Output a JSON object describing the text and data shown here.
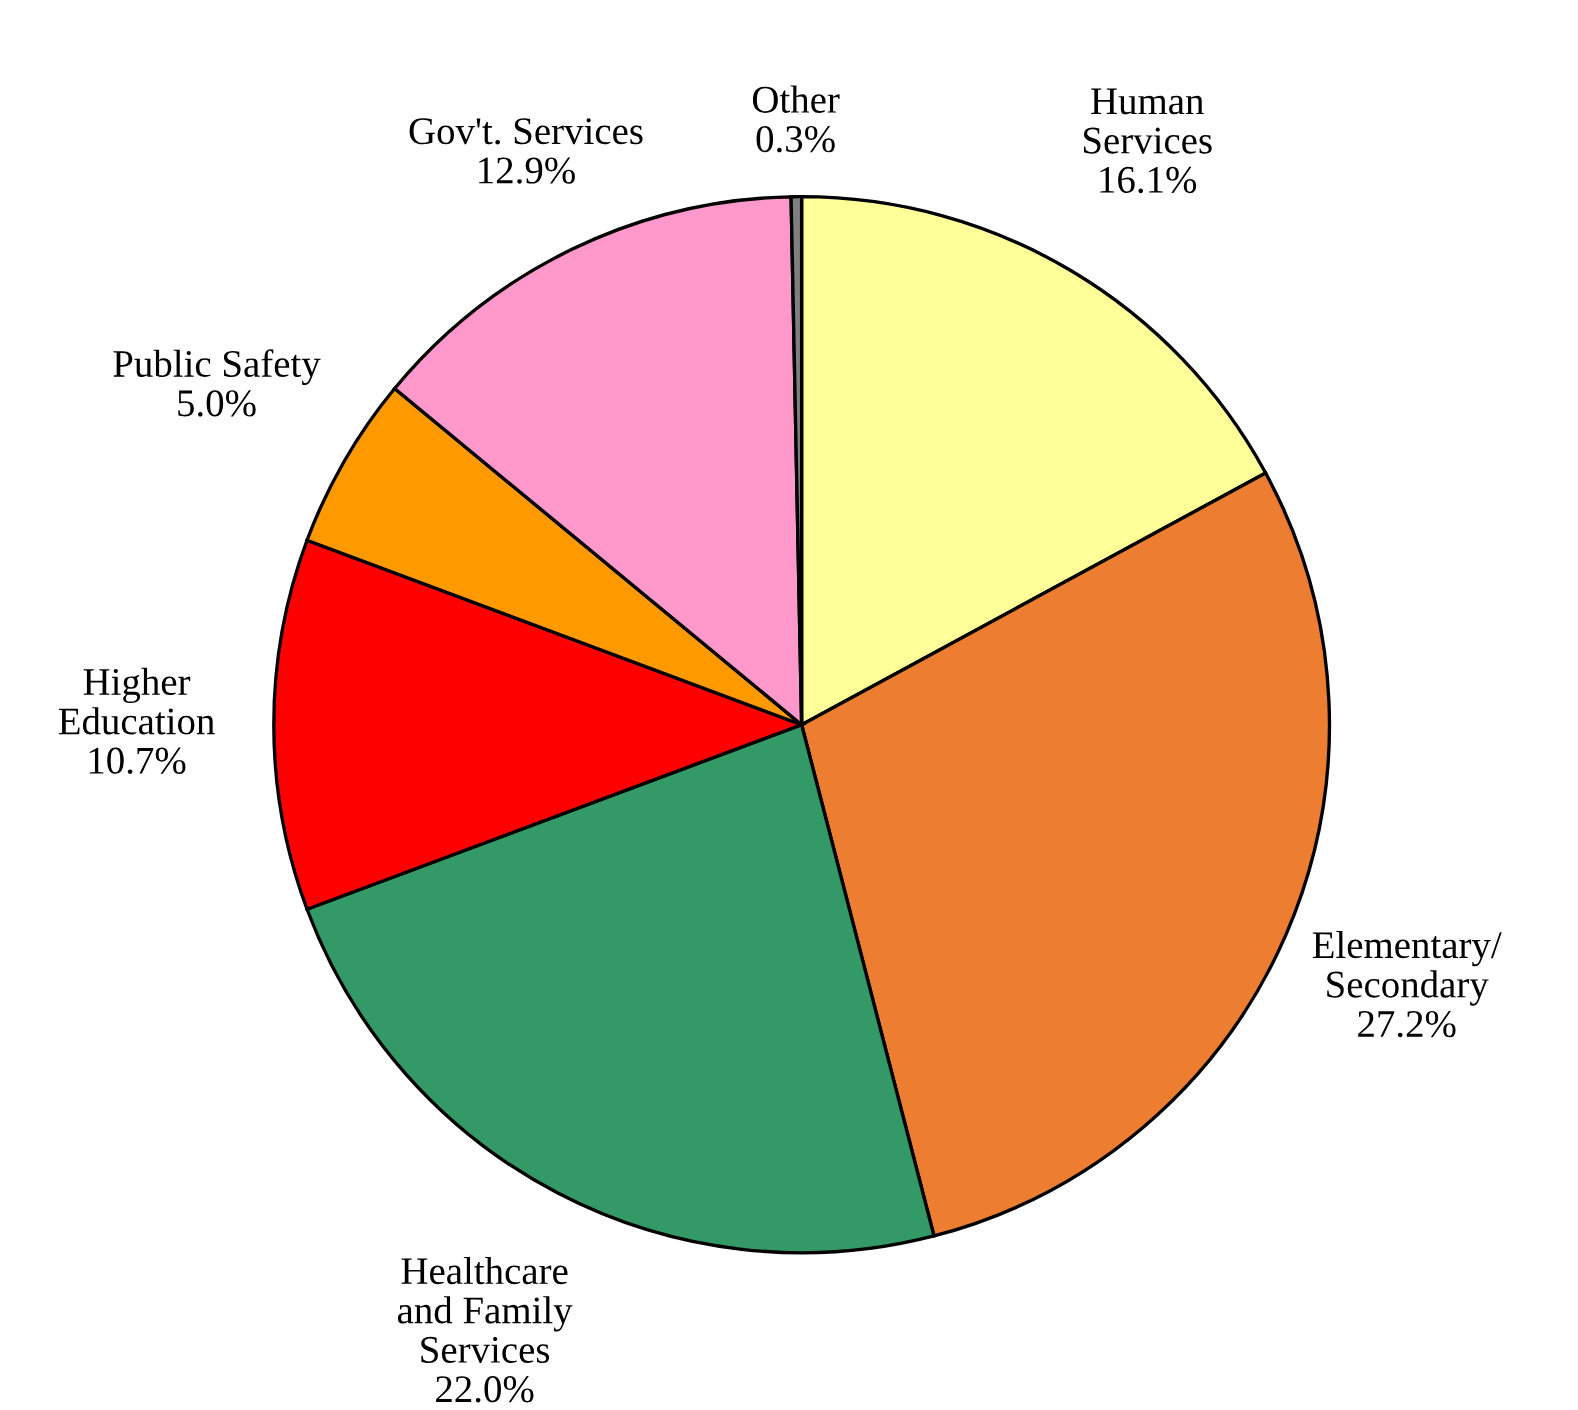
{
  "chart_data": {
    "type": "pie",
    "categories": [
      "Human\nServices",
      "Elementary/\nSecondary",
      "Healthcare\nand Family\nServices",
      "Higher\nEducation",
      "Public Safety",
      "Gov't. Services",
      "Other"
    ],
    "values": [
      16.1,
      27.2,
      22.0,
      10.7,
      5.0,
      12.9,
      0.3
    ],
    "value_labels": [
      "16.1%",
      "27.2%",
      "22.0%",
      "10.7%",
      "5.0%",
      "12.9%",
      "0.3%"
    ],
    "colors": [
      "#ffff99",
      "#ed7d31",
      "#339966",
      "#ff0000",
      "#ff9900",
      "#ff99cc",
      "#7f7f7f"
    ],
    "legend": false
  }
}
